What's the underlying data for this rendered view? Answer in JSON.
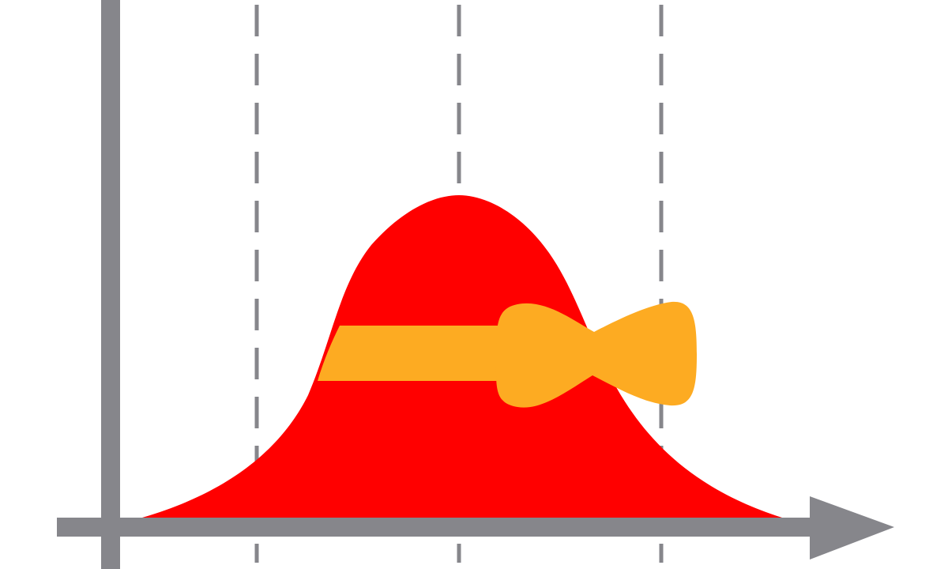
{
  "colors": {
    "background": "#ffffff",
    "axis": "#86868b",
    "gridline": "#86868b",
    "curve_fill": "#ff0000",
    "ribbon": "#fdab22"
  },
  "icons": {
    "y_axis": "vertical-axis-icon",
    "x_axis": "horizontal-axis-arrow-icon",
    "curve": "bell-curve-icon",
    "ribbon": "hat-ribbon-bow-icon"
  },
  "gridlines": {
    "count": 3,
    "style": "dashed"
  }
}
